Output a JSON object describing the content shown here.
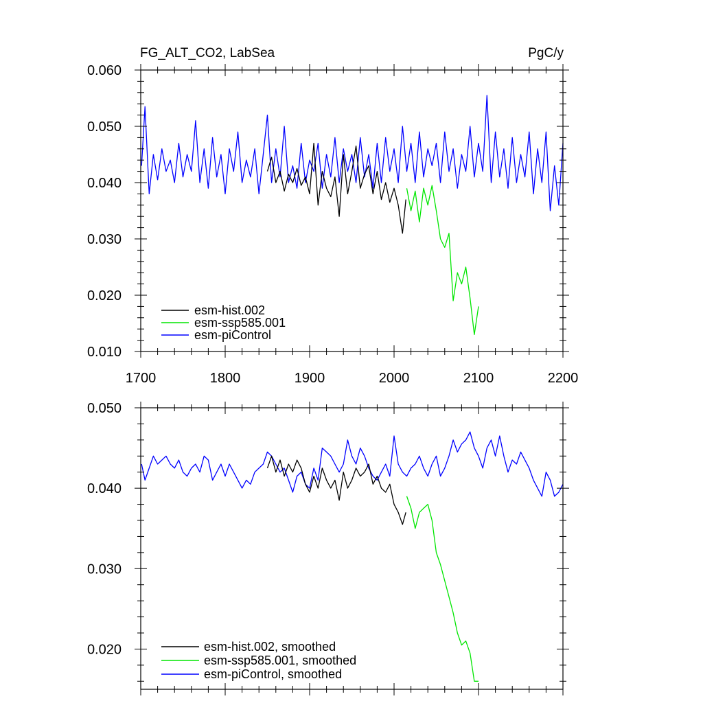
{
  "chart_data": [
    {
      "type": "line",
      "title": "FG_ALT_CO2, LabSea",
      "units": "PgC/y",
      "xlim": [
        1700,
        2200
      ],
      "ylim": [
        0.01,
        0.06
      ],
      "x_ticks": [
        "1700",
        "1800",
        "1900",
        "2000",
        "2100",
        "2200"
      ],
      "y_ticks": [
        "0.010",
        "0.020",
        "0.030",
        "0.040",
        "0.050",
        "0.060"
      ],
      "legend_position": "bottom-left",
      "series": [
        {
          "name": "esm-hist.002",
          "color": "#000000",
          "x": [
            1850,
            1855,
            1860,
            1865,
            1870,
            1875,
            1880,
            1885,
            1890,
            1895,
            1900,
            1905,
            1910,
            1915,
            1920,
            1925,
            1930,
            1935,
            1940,
            1945,
            1950,
            1955,
            1960,
            1965,
            1970,
            1975,
            1980,
            1985,
            1990,
            1995,
            2000,
            2005,
            2010,
            2014
          ],
          "values": [
            0.042,
            0.0445,
            0.04,
            0.042,
            0.0385,
            0.0415,
            0.04,
            0.0425,
            0.0395,
            0.041,
            0.038,
            0.047,
            0.036,
            0.042,
            0.039,
            0.0375,
            0.041,
            0.034,
            0.045,
            0.038,
            0.042,
            0.0465,
            0.039,
            0.0415,
            0.043,
            0.038,
            0.042,
            0.037,
            0.04,
            0.0365,
            0.039,
            0.036,
            0.031,
            0.037
          ]
        },
        {
          "name": "esm-ssp585.001",
          "color": "#00e600",
          "x": [
            2015,
            2020,
            2025,
            2030,
            2035,
            2040,
            2045,
            2050,
            2055,
            2060,
            2065,
            2070,
            2075,
            2080,
            2085,
            2090,
            2095,
            2100
          ],
          "values": [
            0.039,
            0.035,
            0.0385,
            0.033,
            0.039,
            0.036,
            0.0395,
            0.035,
            0.03,
            0.0285,
            0.031,
            0.019,
            0.024,
            0.022,
            0.025,
            0.0195,
            0.013,
            0.018
          ]
        },
        {
          "name": "esm-piControl",
          "color": "#0000ff",
          "x": [
            1701,
            1705,
            1710,
            1715,
            1720,
            1725,
            1730,
            1735,
            1740,
            1745,
            1750,
            1755,
            1760,
            1765,
            1770,
            1775,
            1780,
            1785,
            1790,
            1795,
            1800,
            1805,
            1810,
            1815,
            1820,
            1825,
            1830,
            1835,
            1840,
            1845,
            1850,
            1855,
            1860,
            1865,
            1870,
            1875,
            1880,
            1885,
            1890,
            1895,
            1900,
            1905,
            1910,
            1915,
            1920,
            1925,
            1930,
            1935,
            1940,
            1945,
            1950,
            1955,
            1960,
            1965,
            1970,
            1975,
            1980,
            1985,
            1990,
            1995,
            2000,
            2005,
            2010,
            2015,
            2020,
            2025,
            2030,
            2035,
            2040,
            2045,
            2050,
            2055,
            2060,
            2065,
            2070,
            2075,
            2080,
            2085,
            2090,
            2095,
            2100,
            2105,
            2110,
            2115,
            2120,
            2125,
            2130,
            2135,
            2140,
            2145,
            2150,
            2155,
            2160,
            2165,
            2170,
            2175,
            2180,
            2185,
            2190,
            2195,
            2200
          ],
          "values": [
            0.043,
            0.0535,
            0.038,
            0.045,
            0.0405,
            0.046,
            0.042,
            0.044,
            0.04,
            0.047,
            0.041,
            0.045,
            0.042,
            0.051,
            0.04,
            0.046,
            0.039,
            0.048,
            0.041,
            0.045,
            0.038,
            0.046,
            0.042,
            0.049,
            0.04,
            0.044,
            0.041,
            0.046,
            0.038,
            0.045,
            0.052,
            0.04,
            0.046,
            0.041,
            0.05,
            0.04,
            0.043,
            0.039,
            0.047,
            0.04,
            0.044,
            0.042,
            0.047,
            0.039,
            0.045,
            0.041,
            0.048,
            0.04,
            0.046,
            0.042,
            0.045,
            0.04,
            0.048,
            0.041,
            0.045,
            0.039,
            0.047,
            0.04,
            0.048,
            0.042,
            0.046,
            0.04,
            0.05,
            0.042,
            0.047,
            0.04,
            0.049,
            0.041,
            0.046,
            0.043,
            0.047,
            0.04,
            0.049,
            0.042,
            0.046,
            0.039,
            0.045,
            0.042,
            0.05,
            0.041,
            0.047,
            0.042,
            0.0555,
            0.04,
            0.049,
            0.041,
            0.046,
            0.039,
            0.048,
            0.04,
            0.045,
            0.041,
            0.049,
            0.038,
            0.046,
            0.04,
            0.049,
            0.035,
            0.043,
            0.036,
            0.047
          ]
        }
      ]
    },
    {
      "type": "line",
      "title": "",
      "xlim": [
        1700,
        2200
      ],
      "ylim": [
        0.015,
        0.05
      ],
      "y_ticks": [
        "0.020",
        "0.030",
        "0.040",
        "0.050"
      ],
      "legend_position": "bottom-left",
      "series": [
        {
          "name": "esm-hist.002, smoothed",
          "color": "#000000",
          "x": [
            1850,
            1855,
            1860,
            1865,
            1870,
            1875,
            1880,
            1885,
            1890,
            1895,
            1900,
            1905,
            1910,
            1915,
            1920,
            1925,
            1930,
            1935,
            1940,
            1945,
            1950,
            1955,
            1960,
            1965,
            1970,
            1975,
            1980,
            1985,
            1990,
            1995,
            2000,
            2005,
            2010,
            2014
          ],
          "values": [
            0.0425,
            0.044,
            0.042,
            0.0435,
            0.0415,
            0.043,
            0.042,
            0.0435,
            0.0425,
            0.0405,
            0.0395,
            0.0415,
            0.04,
            0.0425,
            0.041,
            0.04,
            0.041,
            0.0385,
            0.042,
            0.04,
            0.041,
            0.0425,
            0.0415,
            0.042,
            0.043,
            0.0405,
            0.0415,
            0.04,
            0.0395,
            0.0405,
            0.038,
            0.037,
            0.0355,
            0.037
          ]
        },
        {
          "name": "esm-ssp585.001, smoothed",
          "color": "#00e600",
          "x": [
            2015,
            2020,
            2025,
            2030,
            2035,
            2040,
            2045,
            2050,
            2055,
            2060,
            2065,
            2070,
            2075,
            2080,
            2085,
            2090,
            2095,
            2100
          ],
          "values": [
            0.039,
            0.0375,
            0.035,
            0.037,
            0.0375,
            0.038,
            0.036,
            0.032,
            0.0305,
            0.0285,
            0.0265,
            0.0245,
            0.022,
            0.0205,
            0.021,
            0.0195,
            0.016,
            0.016
          ]
        },
        {
          "name": "esm-piControl, smoothed",
          "color": "#0000ff",
          "x": [
            1701,
            1705,
            1710,
            1715,
            1720,
            1725,
            1730,
            1735,
            1740,
            1745,
            1750,
            1755,
            1760,
            1765,
            1770,
            1775,
            1780,
            1785,
            1790,
            1795,
            1800,
            1805,
            1810,
            1815,
            1820,
            1825,
            1830,
            1835,
            1840,
            1845,
            1850,
            1855,
            1860,
            1865,
            1870,
            1875,
            1880,
            1885,
            1890,
            1895,
            1900,
            1905,
            1910,
            1915,
            1920,
            1925,
            1930,
            1935,
            1940,
            1945,
            1950,
            1955,
            1960,
            1965,
            1970,
            1975,
            1980,
            1985,
            1990,
            1995,
            2000,
            2005,
            2010,
            2015,
            2020,
            2025,
            2030,
            2035,
            2040,
            2045,
            2050,
            2055,
            2060,
            2065,
            2070,
            2075,
            2080,
            2085,
            2090,
            2095,
            2100,
            2105,
            2110,
            2115,
            2120,
            2125,
            2130,
            2135,
            2140,
            2145,
            2150,
            2155,
            2160,
            2165,
            2170,
            2175,
            2180,
            2185,
            2190,
            2195,
            2200
          ],
          "values": [
            0.043,
            0.041,
            0.0425,
            0.044,
            0.043,
            0.0435,
            0.044,
            0.043,
            0.0425,
            0.0435,
            0.042,
            0.0415,
            0.0425,
            0.043,
            0.042,
            0.044,
            0.0435,
            0.041,
            0.042,
            0.043,
            0.0415,
            0.043,
            0.042,
            0.041,
            0.04,
            0.041,
            0.0405,
            0.042,
            0.0425,
            0.043,
            0.0445,
            0.044,
            0.043,
            0.042,
            0.0425,
            0.041,
            0.0395,
            0.0415,
            0.042,
            0.0405,
            0.04,
            0.0425,
            0.041,
            0.045,
            0.0445,
            0.044,
            0.043,
            0.042,
            0.043,
            0.046,
            0.044,
            0.043,
            0.045,
            0.044,
            0.0425,
            0.0415,
            0.041,
            0.042,
            0.043,
            0.0415,
            0.0465,
            0.043,
            0.042,
            0.0415,
            0.0425,
            0.043,
            0.044,
            0.0425,
            0.0415,
            0.043,
            0.044,
            0.0415,
            0.0425,
            0.044,
            0.046,
            0.0445,
            0.0455,
            0.046,
            0.047,
            0.045,
            0.044,
            0.0425,
            0.045,
            0.046,
            0.044,
            0.0465,
            0.044,
            0.042,
            0.0435,
            0.043,
            0.0445,
            0.0435,
            0.0425,
            0.041,
            0.04,
            0.039,
            0.042,
            0.041,
            0.039,
            0.0395,
            0.0405
          ]
        }
      ]
    }
  ]
}
